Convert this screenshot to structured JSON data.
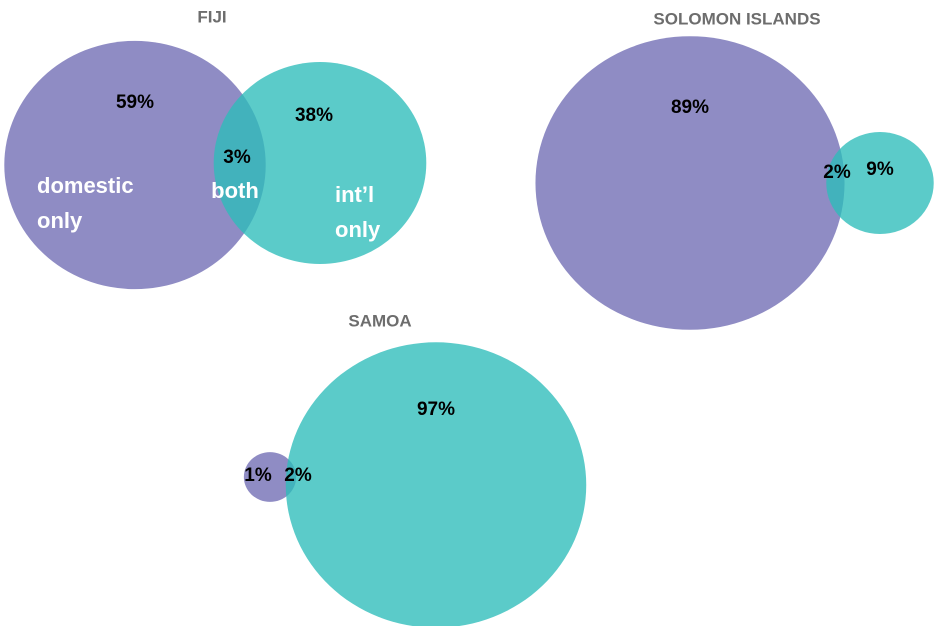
{
  "chart_data": [
    {
      "type": "venn",
      "title": "FIJI",
      "values": [
        59,
        3,
        38
      ],
      "value_labels": [
        "59%",
        "3%",
        "38%"
      ],
      "set_labels": [
        [
          "domestic",
          "only"
        ],
        [
          "both"
        ],
        [
          "int’l",
          "only"
        ]
      ],
      "colors": [
        "#8f8cc4",
        "#2dbdba"
      ]
    },
    {
      "type": "venn",
      "title": "SOLOMON ISLANDS",
      "values": [
        89,
        2,
        9
      ],
      "value_labels": [
        "89%",
        "2%",
        "9%"
      ],
      "colors": [
        "#8f8cc4",
        "#2dbdba"
      ]
    },
    {
      "type": "venn",
      "title": "SAMOA",
      "values": [
        1,
        2,
        97
      ],
      "value_labels": [
        "1%",
        "2%",
        "97%"
      ],
      "colors": [
        "#8f8cc4",
        "#2dbdba"
      ]
    }
  ]
}
